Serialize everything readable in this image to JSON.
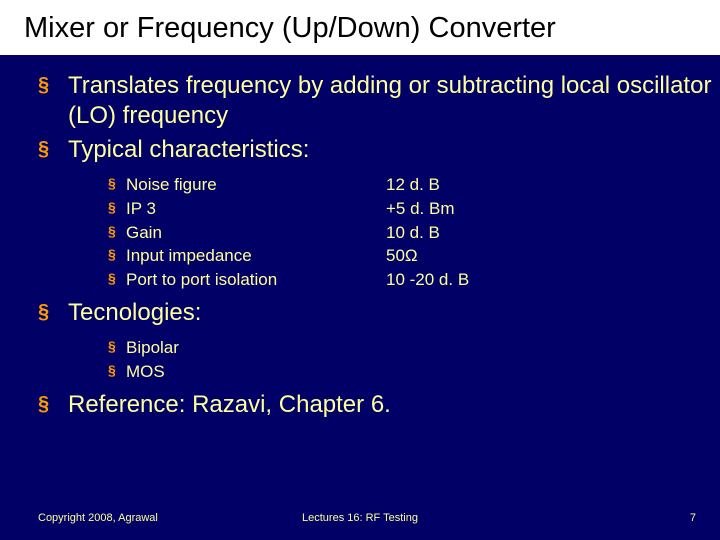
{
  "colors": {
    "background": "#000066",
    "text": "#ffff99",
    "bullet": "#ff9900",
    "title_bg": "#ffffff",
    "title_text": "#000000"
  },
  "title": "Mixer or Frequency (Up/Down) Converter",
  "bullets": {
    "b1": "Translates frequency by adding or subtracting local oscillator (LO) frequency",
    "b2": "Typical characteristics:",
    "b3": "Tecnologies:",
    "b4": "Reference: Razavi, Chapter 6."
  },
  "chars": {
    "items": [
      {
        "label": "Noise figure",
        "value": "12 d. B"
      },
      {
        "label": "IP 3",
        "value": "+5 d. Bm"
      },
      {
        "label": "Gain",
        "value": "10 d. B"
      },
      {
        "label": "Input impedance",
        "value": "50Ω"
      },
      {
        "label": "Port to port isolation",
        "value": "10 -20 d. B"
      }
    ]
  },
  "tech": {
    "items": [
      {
        "label": "Bipolar"
      },
      {
        "label": "MOS"
      }
    ]
  },
  "footer": {
    "copyright": "Copyright 2008, Agrawal",
    "center": "Lectures 16: RF Testing",
    "page": "7"
  }
}
